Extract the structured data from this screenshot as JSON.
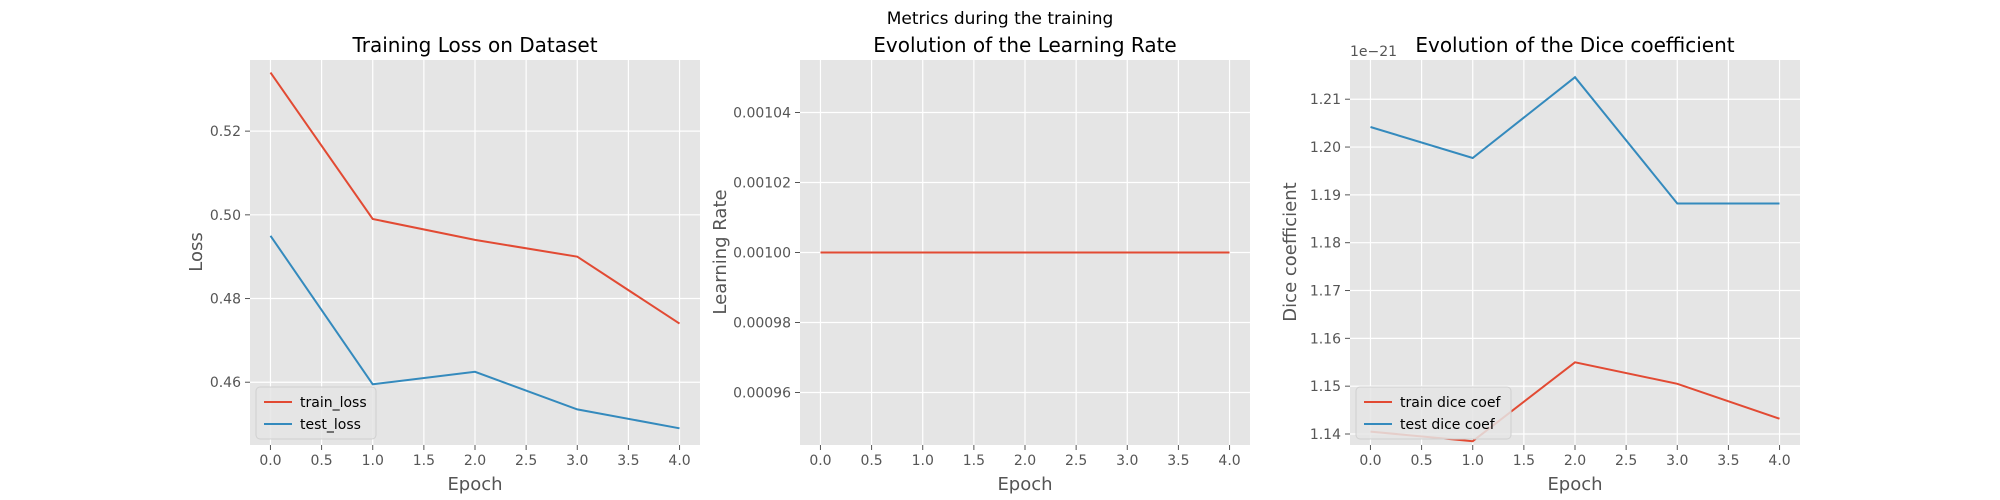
{
  "figure_title": "Metrics during the training",
  "colors": {
    "train": "#E24A33",
    "test": "#348ABD",
    "panel_bg": "#E5E5E5",
    "grid": "#FFFFFF"
  },
  "chart_data": [
    {
      "type": "line",
      "title": "Training Loss on Dataset",
      "xlabel": "Epoch",
      "ylabel": "Loss",
      "x": [
        0,
        1,
        2,
        3,
        4
      ],
      "xlim": [
        -0.2,
        4.2
      ],
      "ylim": [
        0.445,
        0.537
      ],
      "xticks": [
        0,
        0.5,
        1,
        1.5,
        2,
        2.5,
        3,
        3.5,
        4
      ],
      "xtick_labels": [
        "0.0",
        "0.5",
        "1.0",
        "1.5",
        "2.0",
        "2.5",
        "3.0",
        "3.5",
        "4.0"
      ],
      "yticks": [
        0.46,
        0.48,
        0.5,
        0.52
      ],
      "ytick_labels": [
        "0.46",
        "0.48",
        "0.50",
        "0.52"
      ],
      "grid": true,
      "legend": "lower-left",
      "series": [
        {
          "name": "train_loss",
          "values": [
            0.534,
            0.499,
            0.494,
            0.49,
            0.474
          ]
        },
        {
          "name": "test_loss",
          "values": [
            0.495,
            0.4595,
            0.4625,
            0.4535,
            0.449
          ]
        }
      ]
    },
    {
      "type": "line",
      "title": "Evolution of the Learning Rate",
      "xlabel": "Epoch",
      "ylabel": "Learning Rate",
      "x": [
        0,
        1,
        2,
        3,
        4
      ],
      "xlim": [
        -0.2,
        4.2
      ],
      "ylim": [
        0.000945,
        0.001055
      ],
      "xticks": [
        0,
        0.5,
        1,
        1.5,
        2,
        2.5,
        3,
        3.5,
        4
      ],
      "xtick_labels": [
        "0.0",
        "0.5",
        "1.0",
        "1.5",
        "2.0",
        "2.5",
        "3.0",
        "3.5",
        "4.0"
      ],
      "yticks": [
        0.00096,
        0.00098,
        0.001,
        0.00102,
        0.00104
      ],
      "ytick_labels": [
        "0.00096",
        "0.00098",
        "0.00100",
        "0.00102",
        "0.00104"
      ],
      "grid": true,
      "series": [
        {
          "values": [
            0.001,
            0.001,
            0.001,
            0.001,
            0.001
          ]
        }
      ]
    },
    {
      "type": "line",
      "title": "Evolution of the Dice coefficient",
      "xlabel": "Epoch",
      "ylabel": "Dice coefficient",
      "y_offset_label": "1e−21",
      "x": [
        0,
        1,
        2,
        3,
        4
      ],
      "xlim": [
        -0.2,
        4.2
      ],
      "ylim": [
        1.1377,
        1.2182
      ],
      "xticks": [
        0,
        0.5,
        1,
        1.5,
        2,
        2.5,
        3,
        3.5,
        4
      ],
      "xtick_labels": [
        "0.0",
        "0.5",
        "1.0",
        "1.5",
        "2.0",
        "2.5",
        "3.0",
        "3.5",
        "4.0"
      ],
      "yticks": [
        1.14,
        1.15,
        1.16,
        1.17,
        1.18,
        1.19,
        1.2,
        1.21
      ],
      "ytick_labels": [
        "1.14",
        "1.15",
        "1.16",
        "1.17",
        "1.18",
        "1.19",
        "1.20",
        "1.21"
      ],
      "grid": true,
      "legend": "lower-left",
      "series": [
        {
          "name": "train dice coef",
          "values": [
            1.1405,
            1.1385,
            1.155,
            1.1505,
            1.1432
          ]
        },
        {
          "name": "test dice coef",
          "values": [
            1.2042,
            1.1977,
            1.2146,
            1.1882,
            1.1882
          ]
        }
      ]
    }
  ]
}
